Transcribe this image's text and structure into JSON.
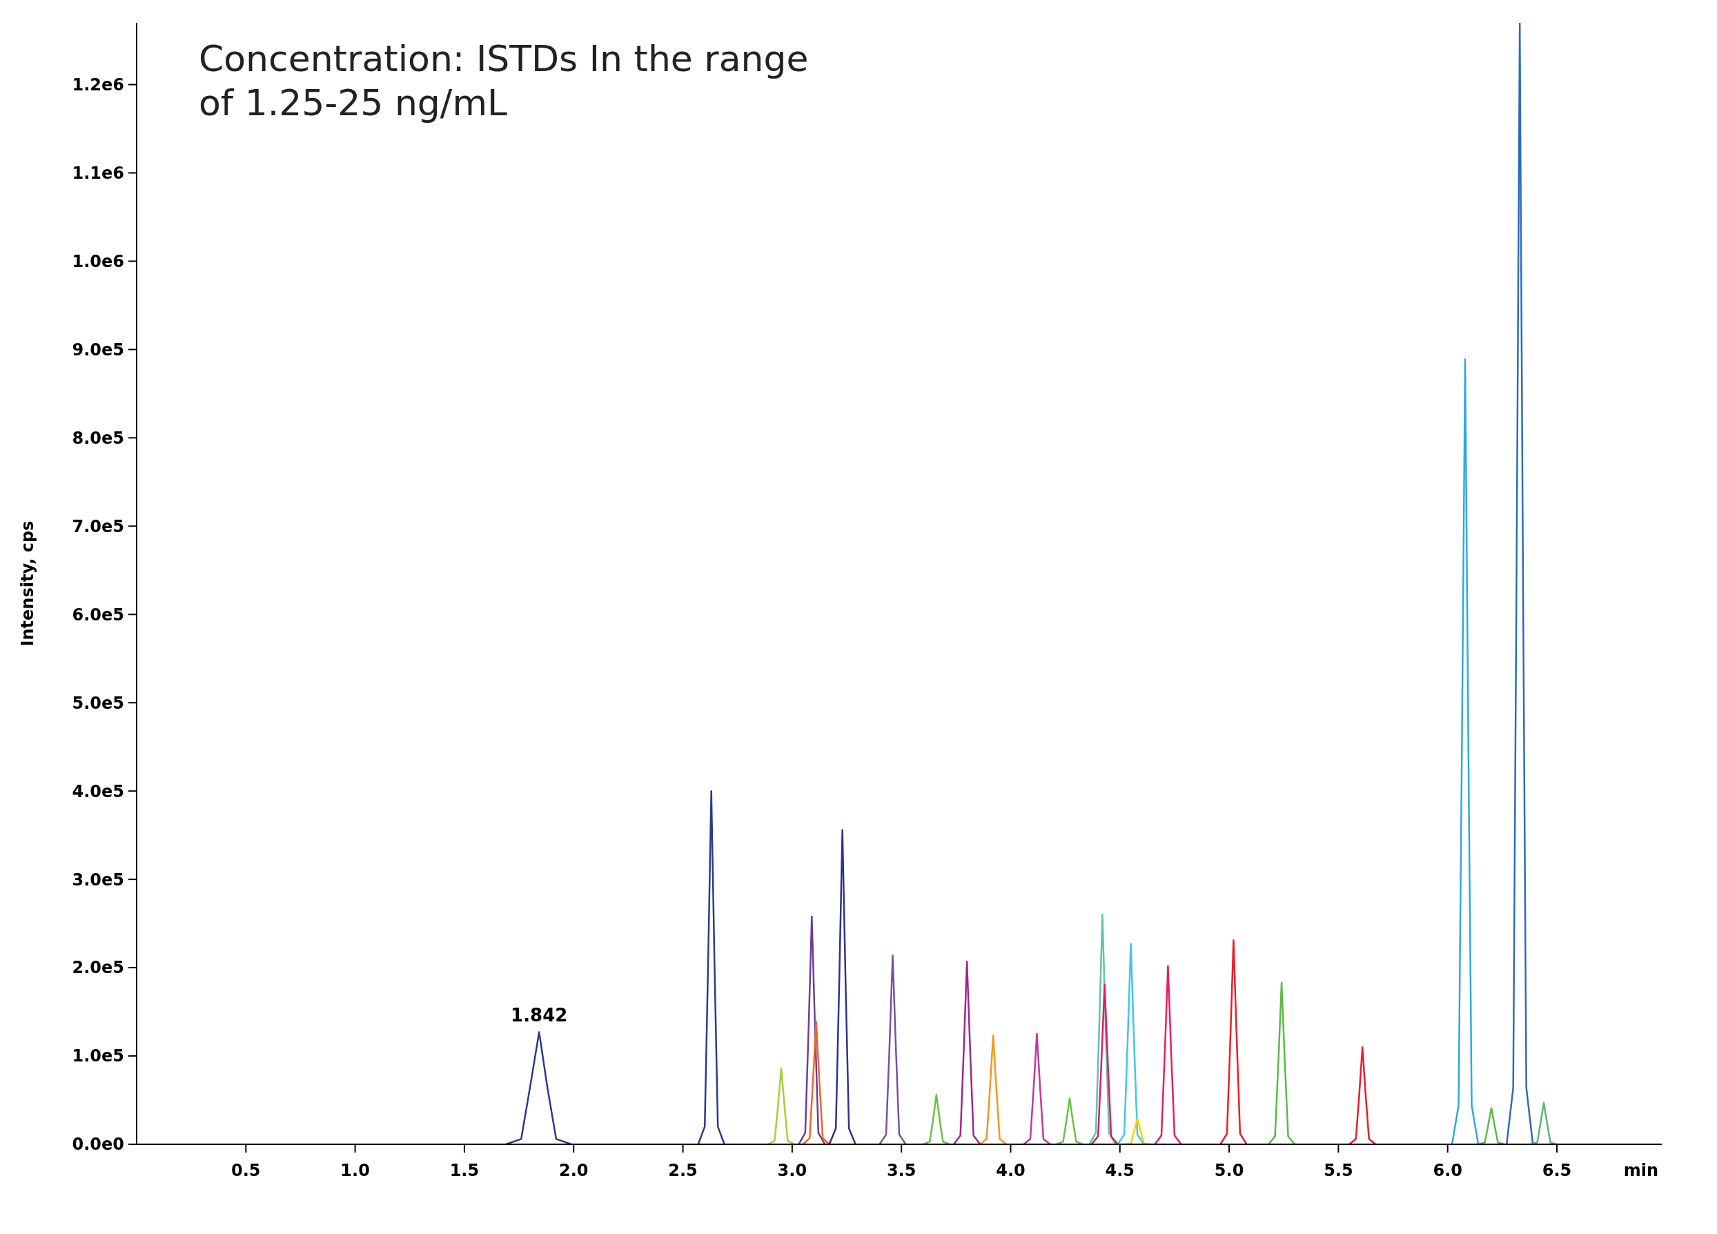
{
  "chart_data": {
    "type": "line",
    "title": "Concentration: ISTDs In the range of 1.25-25 ng/mL",
    "xlabel": "min",
    "ylabel": "Intensity, cps",
    "xlim": [
      0,
      6.98
    ],
    "ylim": [
      0,
      1270000
    ],
    "xticks": [
      {
        "value": 0.5,
        "label": "0.5"
      },
      {
        "value": 1,
        "label": "1.0"
      },
      {
        "value": 1.5,
        "label": "1.5"
      },
      {
        "value": 2,
        "label": "2.0"
      },
      {
        "value": 2.5,
        "label": "2.5"
      },
      {
        "value": 3,
        "label": "3.0"
      },
      {
        "value": 3.5,
        "label": "3.5"
      },
      {
        "value": 4,
        "label": "4.0"
      },
      {
        "value": 4.5,
        "label": "4.5"
      },
      {
        "value": 5,
        "label": "5.0"
      },
      {
        "value": 5.5,
        "label": "5.5"
      },
      {
        "value": 6,
        "label": "6.0"
      },
      {
        "value": 6.5,
        "label": "6.5"
      }
    ],
    "yticks": [
      {
        "value": 0,
        "label": "0.0e0"
      },
      {
        "value": 100000,
        "label": "1.0e5"
      },
      {
        "value": 200000,
        "label": "2.0e5"
      },
      {
        "value": 300000,
        "label": "3.0e5"
      },
      {
        "value": 400000,
        "label": "4.0e5"
      },
      {
        "value": 500000,
        "label": "5.0e5"
      },
      {
        "value": 600000,
        "label": "6.0e5"
      },
      {
        "value": 700000,
        "label": "7.0e5"
      },
      {
        "value": 800000,
        "label": "8.0e5"
      },
      {
        "value": 900000,
        "label": "9.0e5"
      },
      {
        "value": 1000000,
        "label": "1.0e6"
      },
      {
        "value": 1100000,
        "label": "1.1e6"
      },
      {
        "value": 1200000,
        "label": "1.2e6"
      }
    ],
    "grid": false,
    "marker": "none",
    "line_style": "solid",
    "annotations": [
      {
        "text": "1.842",
        "x": 1.842,
        "y": 127000
      }
    ],
    "series": [
      {
        "color": "#2b3990",
        "x": [
          1.69,
          1.76,
          1.8,
          1.842,
          1.88,
          1.92,
          1.99
        ],
        "values": [
          0,
          6000,
          64000,
          127000,
          64000,
          6000,
          0
        ]
      },
      {
        "color": "#2b3990",
        "x": [
          2.57,
          2.6,
          2.615,
          2.63,
          2.645,
          2.66,
          2.69
        ],
        "values": [
          0,
          20000,
          200000,
          400000,
          200000,
          20000,
          0
        ]
      },
      {
        "color": "#a6ce39",
        "x": [
          2.89,
          2.92,
          2.935,
          2.95,
          2.965,
          2.98,
          3.01
        ],
        "values": [
          0,
          4000,
          43000,
          86000,
          43000,
          4000,
          0
        ]
      },
      {
        "color": "#6a3d9a",
        "x": [
          3.03,
          3.06,
          3.075,
          3.09,
          3.105,
          3.12,
          3.15
        ],
        "values": [
          0,
          13000,
          129000,
          258000,
          129000,
          13000,
          0
        ]
      },
      {
        "color": "#f26522",
        "x": [
          3.05,
          3.08,
          3.095,
          3.11,
          3.125,
          3.14,
          3.17
        ],
        "values": [
          0,
          7000,
          70000,
          139000,
          70000,
          7000,
          0
        ]
      },
      {
        "color": "#2e3192",
        "x": [
          3.17,
          3.2,
          3.215,
          3.23,
          3.245,
          3.26,
          3.29
        ],
        "values": [
          0,
          18000,
          178000,
          356000,
          178000,
          18000,
          0
        ]
      },
      {
        "color": "#7b4f9e",
        "x": [
          3.4,
          3.43,
          3.445,
          3.46,
          3.475,
          3.49,
          3.52
        ],
        "values": [
          0,
          11000,
          107000,
          214000,
          107000,
          11000,
          0
        ]
      },
      {
        "color": "#6dbe45",
        "x": [
          3.6,
          3.63,
          3.645,
          3.66,
          3.675,
          3.69,
          3.72
        ],
        "values": [
          0,
          3000,
          28000,
          56000,
          28000,
          3000,
          0
        ]
      },
      {
        "color": "#a3238e",
        "x": [
          3.74,
          3.77,
          3.785,
          3.8,
          3.815,
          3.83,
          3.86
        ],
        "values": [
          0,
          10000,
          104000,
          207000,
          104000,
          10000,
          0
        ]
      },
      {
        "color": "#f7941d",
        "x": [
          3.86,
          3.89,
          3.905,
          3.92,
          3.935,
          3.95,
          3.98
        ],
        "values": [
          0,
          6000,
          62000,
          123000,
          62000,
          6000,
          0
        ]
      },
      {
        "color": "#c2389c",
        "x": [
          4.06,
          4.09,
          4.105,
          4.12,
          4.135,
          4.15,
          4.18
        ],
        "values": [
          0,
          6000,
          63000,
          125000,
          63000,
          6000,
          0
        ]
      },
      {
        "color": "#6dbe45",
        "x": [
          4.21,
          4.24,
          4.255,
          4.27,
          4.285,
          4.3,
          4.33
        ],
        "values": [
          0,
          3000,
          26000,
          52000,
          26000,
          3000,
          0
        ]
      },
      {
        "color": "#5cc3b0",
        "x": [
          4.36,
          4.39,
          4.405,
          4.42,
          4.435,
          4.45,
          4.48
        ],
        "values": [
          0,
          13000,
          130000,
          260000,
          130000,
          13000,
          0
        ]
      },
      {
        "color": "#e5195d",
        "x": [
          4.37,
          4.4,
          4.415,
          4.43,
          4.445,
          4.46,
          4.49
        ],
        "values": [
          0,
          9000,
          91000,
          181000,
          91000,
          9000,
          0
        ]
      },
      {
        "color": "#3ec6e8",
        "x": [
          4.49,
          4.52,
          4.535,
          4.55,
          4.565,
          4.58,
          4.61
        ],
        "values": [
          0,
          11000,
          114000,
          227000,
          114000,
          11000,
          0
        ]
      },
      {
        "color": "#ffd200",
        "x": [
          4.52,
          4.55,
          4.565,
          4.58,
          4.595,
          4.61,
          4.64
        ],
        "values": [
          0,
          1000,
          15000,
          29000,
          15000,
          1000,
          0
        ]
      },
      {
        "color": "#ed1c5c",
        "x": [
          4.66,
          4.69,
          4.705,
          4.72,
          4.735,
          4.75,
          4.78
        ],
        "values": [
          0,
          10000,
          101000,
          202000,
          101000,
          10000,
          0
        ]
      },
      {
        "color": "#ed1c24",
        "x": [
          4.96,
          4.99,
          5.005,
          5.02,
          5.035,
          5.05,
          5.08
        ],
        "values": [
          0,
          12000,
          116000,
          231000,
          116000,
          12000,
          0
        ]
      },
      {
        "color": "#5bb947",
        "x": [
          5.18,
          5.21,
          5.225,
          5.24,
          5.255,
          5.27,
          5.3
        ],
        "values": [
          0,
          9000,
          92000,
          183000,
          92000,
          9000,
          0
        ]
      },
      {
        "color": "#ed1c24",
        "x": [
          5.55,
          5.58,
          5.595,
          5.61,
          5.625,
          5.64,
          5.67
        ],
        "values": [
          0,
          6000,
          55000,
          110000,
          55000,
          6000,
          0
        ]
      },
      {
        "color": "#2fa8e0",
        "x": [
          6.02,
          6.05,
          6.065,
          6.08,
          6.095,
          6.11,
          6.14
        ],
        "values": [
          0,
          44000,
          445000,
          889000,
          445000,
          44000,
          0
        ]
      },
      {
        "color": "#5bb947",
        "x": [
          6.14,
          6.17,
          6.185,
          6.2,
          6.215,
          6.23,
          6.26
        ],
        "values": [
          0,
          2000,
          21000,
          41000,
          21000,
          2000,
          0
        ]
      },
      {
        "color": "#2e6bb8",
        "x": [
          6.27,
          6.3,
          6.315,
          6.33,
          6.345,
          6.36,
          6.39
        ],
        "values": [
          0,
          64000,
          635000,
          1270000,
          635000,
          64000,
          0
        ]
      },
      {
        "color": "#5ab57a",
        "x": [
          6.38,
          6.41,
          6.425,
          6.44,
          6.455,
          6.47,
          6.5
        ],
        "values": [
          0,
          2000,
          24000,
          47000,
          24000,
          2000,
          0
        ]
      }
    ]
  }
}
